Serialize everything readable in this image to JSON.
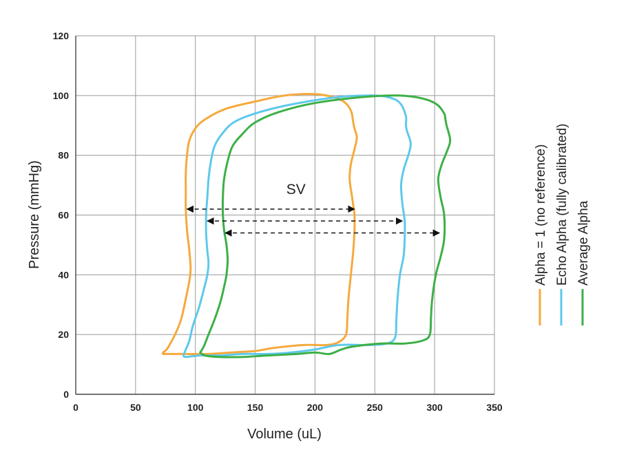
{
  "chart_data": {
    "type": "line",
    "title": "",
    "xlabel": "Volume (uL)",
    "ylabel": "Pressure (mmHg)",
    "xlim": [
      0,
      350
    ],
    "ylim": [
      0,
      120
    ],
    "xticks": [
      0,
      50,
      100,
      150,
      200,
      250,
      300,
      350
    ],
    "yticks": [
      0,
      20,
      40,
      60,
      80,
      100,
      120
    ],
    "grid": true,
    "legend_position": "right, rotated vertical",
    "series": [
      {
        "name": "Alpha = 1 (no reference)",
        "color": "#F5A93C",
        "points": [
          [
            73,
            14
          ],
          [
            76,
            15
          ],
          [
            79,
            17
          ],
          [
            83,
            20
          ],
          [
            88,
            25
          ],
          [
            92,
            32
          ],
          [
            95,
            38
          ],
          [
            96,
            42
          ],
          [
            95,
            48
          ],
          [
            93,
            55
          ],
          [
            92,
            62
          ],
          [
            92,
            68
          ],
          [
            92,
            74
          ],
          [
            93,
            80
          ],
          [
            95,
            85
          ],
          [
            100,
            89
          ],
          [
            108,
            92
          ],
          [
            125,
            95.5
          ],
          [
            150,
            98
          ],
          [
            175,
            100
          ],
          [
            200,
            100.5
          ],
          [
            215,
            99.5
          ],
          [
            224,
            98
          ],
          [
            230,
            95
          ],
          [
            232,
            91
          ],
          [
            233,
            89
          ],
          [
            235,
            86
          ],
          [
            233,
            82
          ],
          [
            230,
            77
          ],
          [
            229,
            72
          ],
          [
            231,
            66
          ],
          [
            233,
            60
          ],
          [
            233,
            55
          ],
          [
            232,
            48
          ],
          [
            230,
            40
          ],
          [
            228,
            32
          ],
          [
            227,
            25
          ],
          [
            226,
            20
          ],
          [
            220,
            17.5
          ],
          [
            210,
            16.5
          ],
          [
            190,
            16.5
          ],
          [
            165,
            15.5
          ],
          [
            150,
            14.5
          ],
          [
            130,
            14
          ],
          [
            110,
            13.5
          ],
          [
            90,
            13.5
          ],
          [
            76,
            13.5
          ],
          [
            73,
            13.5
          ],
          [
            73,
            14
          ]
        ]
      },
      {
        "name": "Echo Alpha (fully calibrated)",
        "color": "#5EC8EC",
        "points": [
          [
            90,
            13
          ],
          [
            92,
            15
          ],
          [
            95,
            18
          ],
          [
            98,
            23
          ],
          [
            103,
            29
          ],
          [
            107,
            35
          ],
          [
            110,
            40
          ],
          [
            111,
            44
          ],
          [
            110,
            48
          ],
          [
            109,
            54
          ],
          [
            109,
            60
          ],
          [
            110,
            66
          ],
          [
            111,
            72
          ],
          [
            113,
            78
          ],
          [
            116,
            83
          ],
          [
            122,
            87
          ],
          [
            132,
            91
          ],
          [
            150,
            94
          ],
          [
            180,
            97
          ],
          [
            220,
            99.5
          ],
          [
            250,
            100
          ],
          [
            265,
            99
          ],
          [
            272,
            97
          ],
          [
            276,
            93
          ],
          [
            276,
            90
          ],
          [
            277,
            88
          ],
          [
            280,
            84
          ],
          [
            278,
            80
          ],
          [
            274,
            75
          ],
          [
            272,
            70
          ],
          [
            273,
            64
          ],
          [
            275,
            58
          ],
          [
            275,
            52
          ],
          [
            274,
            46
          ],
          [
            271,
            40
          ],
          [
            269,
            32
          ],
          [
            268,
            25
          ],
          [
            267,
            19
          ],
          [
            260,
            17
          ],
          [
            245,
            16.5
          ],
          [
            220,
            16.5
          ],
          [
            200,
            15
          ],
          [
            180,
            14
          ],
          [
            160,
            13.5
          ],
          [
            140,
            13.5
          ],
          [
            120,
            13
          ],
          [
            104,
            13
          ],
          [
            92,
            12.5
          ],
          [
            90,
            13
          ]
        ]
      },
      {
        "name": "Average Alpha",
        "color": "#3CAF46",
        "points": [
          [
            104,
            14
          ],
          [
            107,
            16
          ],
          [
            111,
            20
          ],
          [
            116,
            25
          ],
          [
            121,
            31
          ],
          [
            124,
            36
          ],
          [
            126,
            40
          ],
          [
            127,
            45
          ],
          [
            126,
            50
          ],
          [
            124,
            55
          ],
          [
            123,
            60
          ],
          [
            123,
            66
          ],
          [
            124,
            72
          ],
          [
            127,
            78
          ],
          [
            131,
            83
          ],
          [
            139,
            87
          ],
          [
            150,
            91
          ],
          [
            170,
            94.5
          ],
          [
            200,
            97.5
          ],
          [
            240,
            99.5
          ],
          [
            270,
            100
          ],
          [
            290,
            99
          ],
          [
            302,
            97
          ],
          [
            308,
            94
          ],
          [
            309,
            92
          ],
          [
            310,
            90
          ],
          [
            313,
            85
          ],
          [
            310,
            81
          ],
          [
            306,
            77
          ],
          [
            303,
            72
          ],
          [
            305,
            66
          ],
          [
            308,
            60
          ],
          [
            308,
            52
          ],
          [
            305,
            46
          ],
          [
            301,
            40
          ],
          [
            298,
            32
          ],
          [
            297,
            26
          ],
          [
            296,
            20
          ],
          [
            290,
            18
          ],
          [
            275,
            17
          ],
          [
            255,
            17
          ],
          [
            232,
            16
          ],
          [
            222,
            15
          ],
          [
            212,
            13.5
          ],
          [
            200,
            14
          ],
          [
            185,
            13.5
          ],
          [
            160,
            13
          ],
          [
            140,
            12.5
          ],
          [
            120,
            12.5
          ],
          [
            108,
            13
          ],
          [
            104,
            14
          ]
        ]
      }
    ],
    "annotations": {
      "sv_label": "SV",
      "sv_label_pos": [
        176,
        67
      ],
      "arrows": [
        {
          "y": 62,
          "x_start": 93,
          "x_end": 233
        },
        {
          "y": 58,
          "x_start": 110,
          "x_end": 273
        },
        {
          "y": 54,
          "x_start": 125,
          "x_end": 304
        }
      ]
    }
  }
}
